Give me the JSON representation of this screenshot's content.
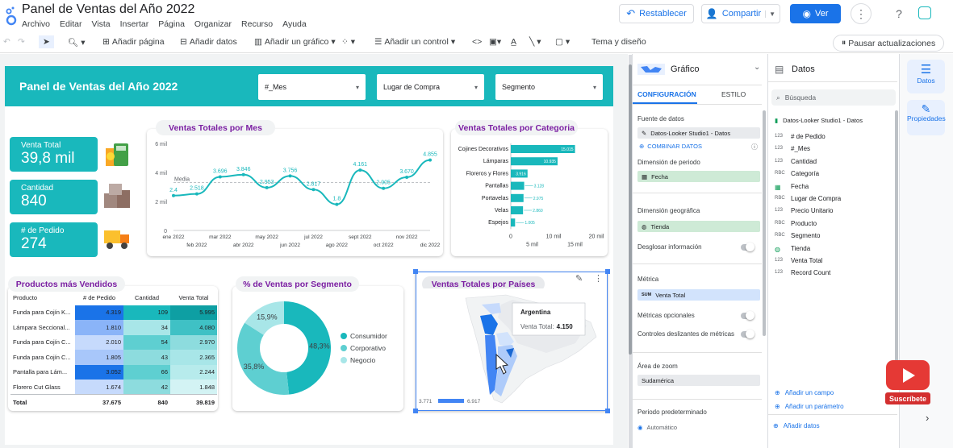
{
  "app": {
    "doc_title": "Panel de Ventas del Año 2022",
    "menu": [
      "Archivo",
      "Editar",
      "Vista",
      "Insertar",
      "Página",
      "Organizar",
      "Recurso",
      "Ayuda"
    ],
    "buttons": {
      "reset": "Restablecer",
      "share": "Compartir",
      "view": "Ver"
    }
  },
  "toolbar": {
    "add_page": "Añadir página",
    "add_data": "Añadir datos",
    "add_chart": "Añadir un gráfico",
    "add_control": "Añadir un control",
    "theme": "Tema y diseño",
    "pause": "Pausar actualizaciones"
  },
  "report": {
    "title": "Panel de Ventas del Año 2022",
    "filters": [
      "#_Mes",
      "Lugar de Compra",
      "Segmento"
    ],
    "kpis": [
      {
        "label": "Venta Total",
        "value": "39,8 mil"
      },
      {
        "label": "Cantidad",
        "value": "840"
      },
      {
        "label": "# de Pedido",
        "value": "274"
      }
    ],
    "line_title": "Ventas Totales por Mes",
    "bar_title": "Ventas Totales por Categoria",
    "table_title": "Productos más Vendidos",
    "donut_title": "% de Ventas por Segmento",
    "map_title": "Ventas Totales por Países",
    "map_tooltip": {
      "country": "Argentina",
      "label": "Venta Total:",
      "value": "4.150"
    },
    "map_legend": {
      "min": "3.771",
      "max": "6.917"
    },
    "table": {
      "headers": [
        "Producto",
        "# de Pedido",
        "Cantidad",
        "Venta Total"
      ],
      "rows": [
        [
          "Funda para Cojín K...",
          "4.319",
          "109",
          "5.995"
        ],
        [
          "Lámpara Seccional...",
          "1.810",
          "34",
          "4.080"
        ],
        [
          "Funda para Cojín C...",
          "2.010",
          "54",
          "2.970"
        ],
        [
          "Funda para Cojín C...",
          "1.805",
          "43",
          "2.365"
        ],
        [
          "Pantalla para Lám...",
          "3.052",
          "66",
          "2.244"
        ],
        [
          "Florero Cut Glass",
          "1.674",
          "42",
          "1.848"
        ]
      ],
      "total": [
        "Total",
        "37.675",
        "840",
        "39.819"
      ]
    }
  },
  "chart_data": [
    {
      "type": "line",
      "title": "Ventas Totales por Mes",
      "x": [
        "ene 2022",
        "feb 2022",
        "mar 2022",
        "abr 2022",
        "may 2022",
        "jun 2022",
        "jul 2022",
        "ago 2022",
        "sept 2022",
        "oct 2022",
        "nov 2022",
        "dic 2022"
      ],
      "values": [
        2.4,
        2.518,
        3.696,
        3.846,
        2.953,
        3.756,
        2.817,
        1.8,
        4.161,
        2.905,
        3.67,
        4.855
      ],
      "data_labels": [
        "2.4",
        "2.518",
        "3.696",
        "3.846",
        "2.953",
        "3.756",
        "2.817",
        "1.8",
        "4.161",
        "2.905",
        "3.670",
        "4.855"
      ],
      "y_ticks": [
        "0",
        "2 mil",
        "4 mil",
        "6 mil"
      ],
      "ylim": [
        0,
        6
      ],
      "reference_line": {
        "label": "Media",
        "value": 3.3
      }
    },
    {
      "type": "bar",
      "title": "Ventas Totales por Categoria",
      "orientation": "horizontal",
      "categories": [
        "Cojines Decorativos",
        "Lámparas",
        "Floreros y Flores",
        "Pantallas",
        "Portavelas",
        "Velas",
        "Espejos"
      ],
      "values": [
        15015,
        10.935,
        3.916,
        3.128,
        2.975,
        2.86,
        1.005
      ],
      "data_labels": [
        "15.015",
        "10.935",
        "3.916",
        "3.128",
        "2.975",
        "2.860",
        "1.005"
      ],
      "x_ticks": [
        "0",
        "5 mil",
        "10 mil",
        "15 mil",
        "20 mil"
      ],
      "xlim": [
        0,
        20000
      ]
    },
    {
      "type": "pie",
      "title": "% de Ventas por Segmento",
      "categories": [
        "Consumidor",
        "Corporativo",
        "Negocio"
      ],
      "values": [
        48.3,
        35.8,
        15.9
      ],
      "labels": [
        "48,3%",
        "35,8%",
        "15,9%"
      ],
      "colors": [
        "#19b8bc",
        "#5ecfd1",
        "#a8e6e8"
      ]
    }
  ],
  "panel": {
    "header": "Gráfico",
    "tabs": [
      "CONFIGURACIÓN",
      "ESTILO"
    ],
    "source_label": "Fuente de datos",
    "source": "Datos-Looker Studio1 - Datos",
    "combine": "COMBINAR DATOS",
    "period_label": "Dimensión de periodo",
    "period": "Fecha",
    "geo_label": "Dimensión geográfica",
    "geo": "Tienda",
    "drill": "Desglosar información",
    "metric_label": "Métrica",
    "metric": "Venta Total",
    "metric_tag": "SUM",
    "optional": "Métricas opcionales",
    "sliders": "Controles deslizantes de métricas",
    "zoom_label": "Área de zoom",
    "zoom": "Sudamérica",
    "default_period": "Periodo predeterminado",
    "auto": "Automático"
  },
  "data_panel": {
    "header": "Datos",
    "search": "Búsqueda",
    "source": "Datos-Looker Studio1 - Datos",
    "fields": [
      [
        "123",
        "# de Pedido"
      ],
      [
        "123",
        "#_Mes"
      ],
      [
        "123",
        "Cantidad"
      ],
      [
        "RBC",
        "Categoría"
      ],
      [
        "",
        "Fecha"
      ],
      [
        "RBC",
        "Lugar de Compra"
      ],
      [
        "123",
        "Precio Unitario"
      ],
      [
        "RBC",
        "Producto"
      ],
      [
        "RBC",
        "Segmento"
      ],
      [
        "",
        "Tienda"
      ],
      [
        "123",
        "Venta Total"
      ],
      [
        "123",
        "Record Count"
      ]
    ],
    "add_field": "Añadir un campo",
    "add_param": "Añadir un parámetro",
    "add_data": "Añadir datos"
  },
  "rail": {
    "data": "Datos",
    "props": "Propiedades"
  },
  "subscribe": "Suscríbete"
}
